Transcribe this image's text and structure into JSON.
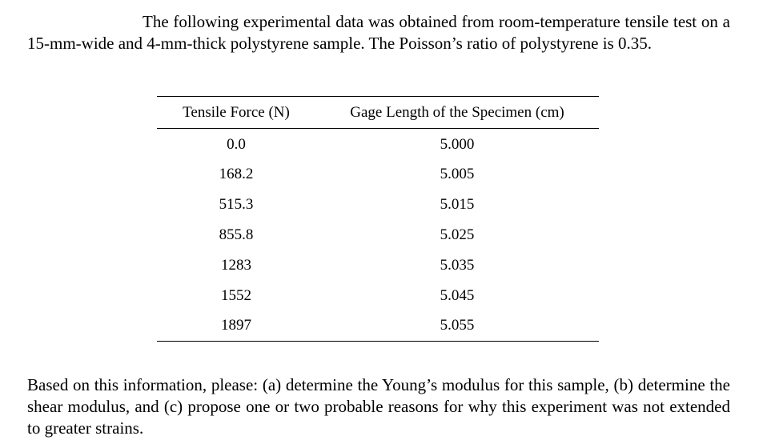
{
  "intro": "The following experimental data was obtained from room-temperature tensile test on a 15-mm-wide and 4-mm-thick polystyrene sample. The Poisson’s ratio of polystyrene is 0.35.",
  "table": {
    "headers": [
      "Tensile Force (N)",
      "Gage Length of the Specimen (cm)"
    ],
    "rows": [
      [
        "0.0",
        "5.000"
      ],
      [
        "168.2",
        "5.005"
      ],
      [
        "515.3",
        "5.015"
      ],
      [
        "855.8",
        "5.025"
      ],
      [
        "1283",
        "5.035"
      ],
      [
        "1552",
        "5.045"
      ],
      [
        "1897",
        "5.055"
      ]
    ]
  },
  "outro": "Based on this information, please: (a) determine the Young’s modulus for this sample, (b) determine the shear modulus, and (c) propose one or two probable reasons for why this experiment was not extended to greater strains."
}
